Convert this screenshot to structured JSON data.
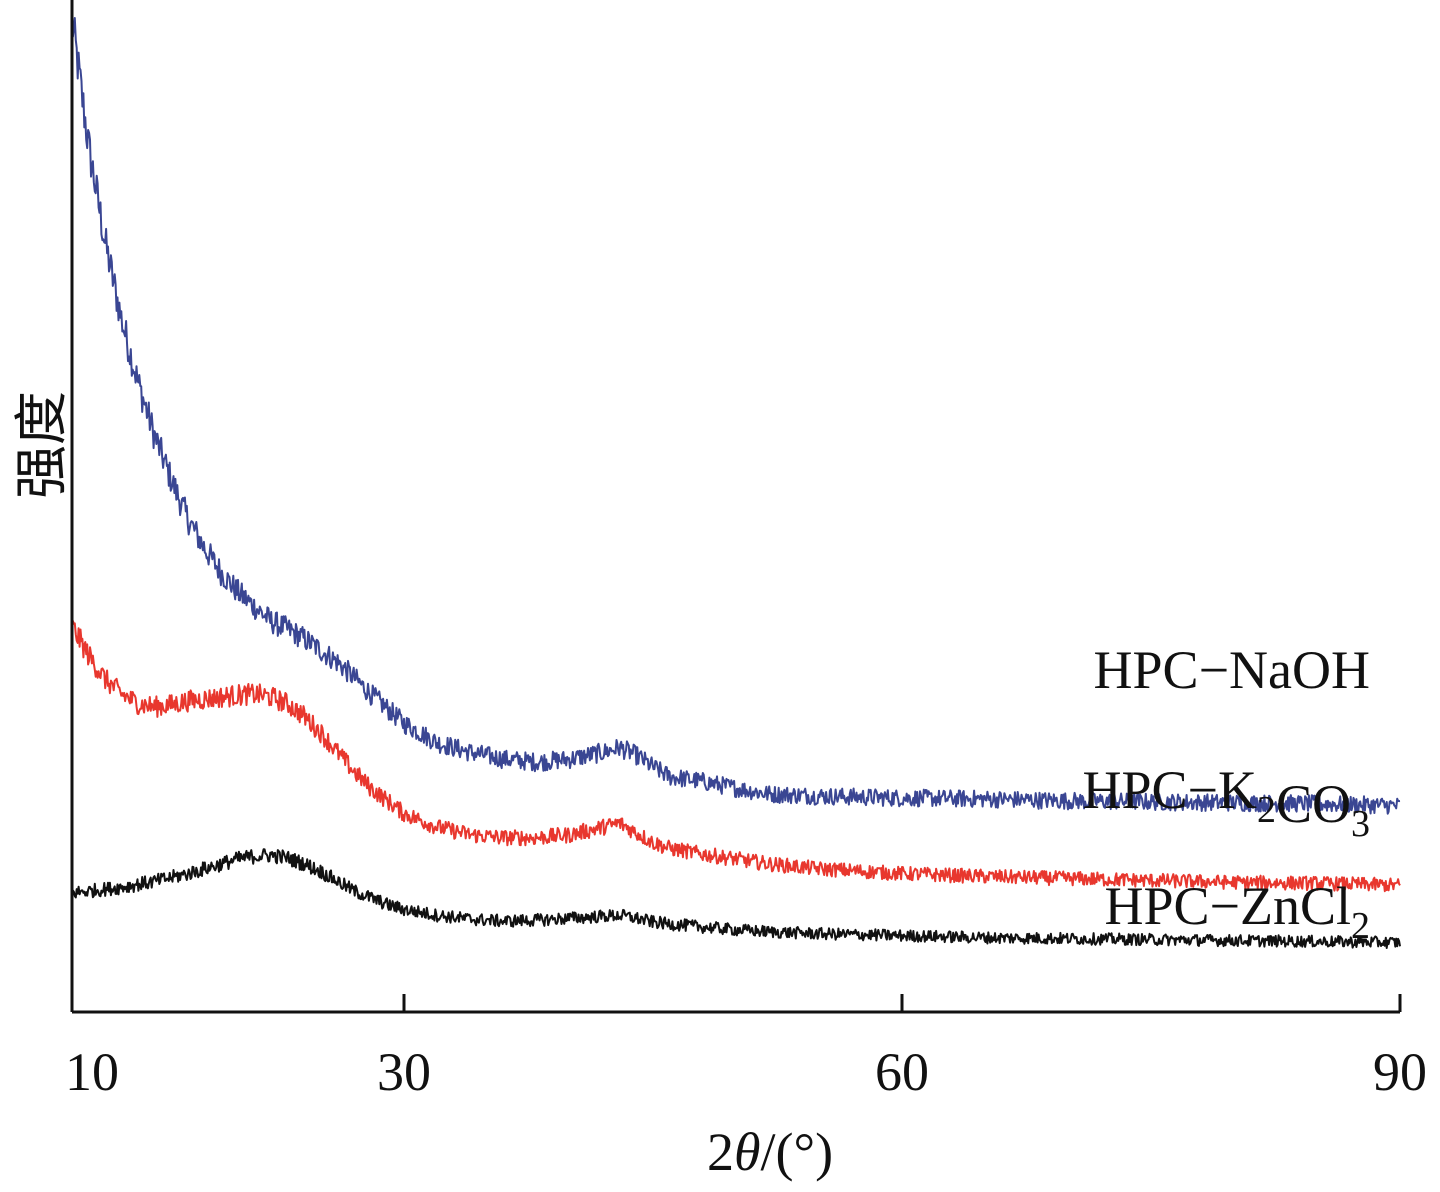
{
  "chart_data": {
    "type": "line",
    "title": "",
    "xlabel_prefix": "2",
    "xlabel_theta": "θ",
    "xlabel_suffix": "/(°)",
    "ylabel": "强度",
    "xlim": [
      10,
      90
    ],
    "x_ticks": [
      "10",
      "30",
      "60",
      "90"
    ],
    "y_ticks": [],
    "grid": false,
    "legend": "labels placed at right end of each curve",
    "series": [
      {
        "name": "HPC-NaOH",
        "label_main": "HPC−NaOH",
        "label_sub": "",
        "label_tail": "",
        "color": "#3a4693",
        "x": [
          10,
          11,
          12,
          13,
          14,
          15,
          16,
          17,
          18,
          19,
          20,
          21,
          22,
          23,
          24,
          25,
          26,
          27,
          28,
          29,
          30,
          32,
          34,
          36,
          38,
          40,
          42,
          43,
          44,
          45,
          46,
          48,
          50,
          52,
          55,
          60,
          65,
          70,
          75,
          80,
          85,
          90
        ],
        "y": [
          10.0,
          8.7,
          7.7,
          6.9,
          6.25,
          5.7,
          5.25,
          4.85,
          4.55,
          4.3,
          4.1,
          3.95,
          3.8,
          3.72,
          3.62,
          3.5,
          3.38,
          3.22,
          3.05,
          2.9,
          2.75,
          2.55,
          2.45,
          2.38,
          2.35,
          2.38,
          2.45,
          2.5,
          2.42,
          2.3,
          2.2,
          2.15,
          2.08,
          2.02,
          2.0,
          1.98,
          1.97,
          1.95,
          1.94,
          1.93,
          1.92,
          1.9
        ]
      },
      {
        "name": "HPC-K2CO3",
        "label_main": "HPC−K",
        "label_sub": "2",
        "label_tail": "CO",
        "label_sub2": "3",
        "color": "#e8372e",
        "x": [
          10,
          11,
          12,
          13,
          14,
          15,
          16,
          17,
          18,
          19,
          20,
          21,
          22,
          23,
          24,
          25,
          26,
          27,
          28,
          29,
          30,
          32,
          34,
          36,
          38,
          40,
          42,
          43,
          44,
          45,
          46,
          48,
          50,
          52,
          55,
          60,
          65,
          70,
          75,
          80,
          85,
          90
        ],
        "y": [
          3.75,
          3.45,
          3.2,
          3.05,
          2.95,
          2.92,
          2.94,
          2.98,
          3.0,
          3.02,
          3.04,
          3.05,
          3.02,
          2.95,
          2.82,
          2.65,
          2.45,
          2.25,
          2.08,
          1.95,
          1.82,
          1.68,
          1.6,
          1.57,
          1.57,
          1.6,
          1.68,
          1.72,
          1.62,
          1.52,
          1.46,
          1.4,
          1.35,
          1.3,
          1.25,
          1.2,
          1.17,
          1.15,
          1.13,
          1.11,
          1.1,
          1.08
        ]
      },
      {
        "name": "HPC-ZnCl2",
        "label_main": "HPC−ZnCl",
        "label_sub": "2",
        "label_tail": "",
        "color": "#111111",
        "x": [
          10,
          11,
          12,
          13,
          14,
          15,
          16,
          17,
          18,
          19,
          20,
          21,
          22,
          23,
          24,
          25,
          26,
          27,
          28,
          29,
          30,
          32,
          34,
          36,
          38,
          40,
          42,
          43,
          44,
          45,
          46,
          48,
          50,
          52,
          55,
          60,
          65,
          70,
          75,
          80,
          85,
          90
        ],
        "y": [
          1.0,
          1.02,
          1.04,
          1.06,
          1.09,
          1.12,
          1.16,
          1.2,
          1.25,
          1.3,
          1.35,
          1.38,
          1.39,
          1.36,
          1.3,
          1.22,
          1.12,
          1.02,
          0.95,
          0.88,
          0.83,
          0.77,
          0.73,
          0.71,
          0.72,
          0.74,
          0.76,
          0.77,
          0.74,
          0.7,
          0.68,
          0.65,
          0.62,
          0.6,
          0.58,
          0.56,
          0.54,
          0.53,
          0.52,
          0.51,
          0.5,
          0.49
        ]
      }
    ]
  }
}
